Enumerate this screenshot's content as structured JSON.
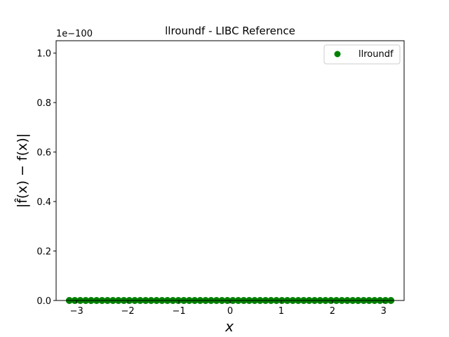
{
  "chart_data": {
    "type": "scatter",
    "title": "llroundf - LIBC Reference",
    "xlabel": "x",
    "ylabel": "|f̂(x) − f(x)|",
    "y_offset_label": "1e−100",
    "xlim": [
      -3.4,
      3.4
    ],
    "ylim": [
      0.0,
      1.05
    ],
    "x_ticks": [
      -3,
      -2,
      -1,
      0,
      1,
      2,
      3
    ],
    "x_tick_labels": [
      "−3",
      "−2",
      "−1",
      "0",
      "1",
      "2",
      "3"
    ],
    "y_ticks": [
      0.0,
      0.2,
      0.4,
      0.6,
      0.8,
      1.0
    ],
    "y_tick_labels": [
      "0.0",
      "0.2",
      "0.4",
      "0.6",
      "0.8",
      "1.0"
    ],
    "legend_position": "top-right",
    "grid": false,
    "series": [
      {
        "name": "llroundf",
        "color": "#008000",
        "x_range": [
          -3.14159,
          3.14159
        ],
        "y_value": 0.0,
        "points": 60
      }
    ]
  }
}
